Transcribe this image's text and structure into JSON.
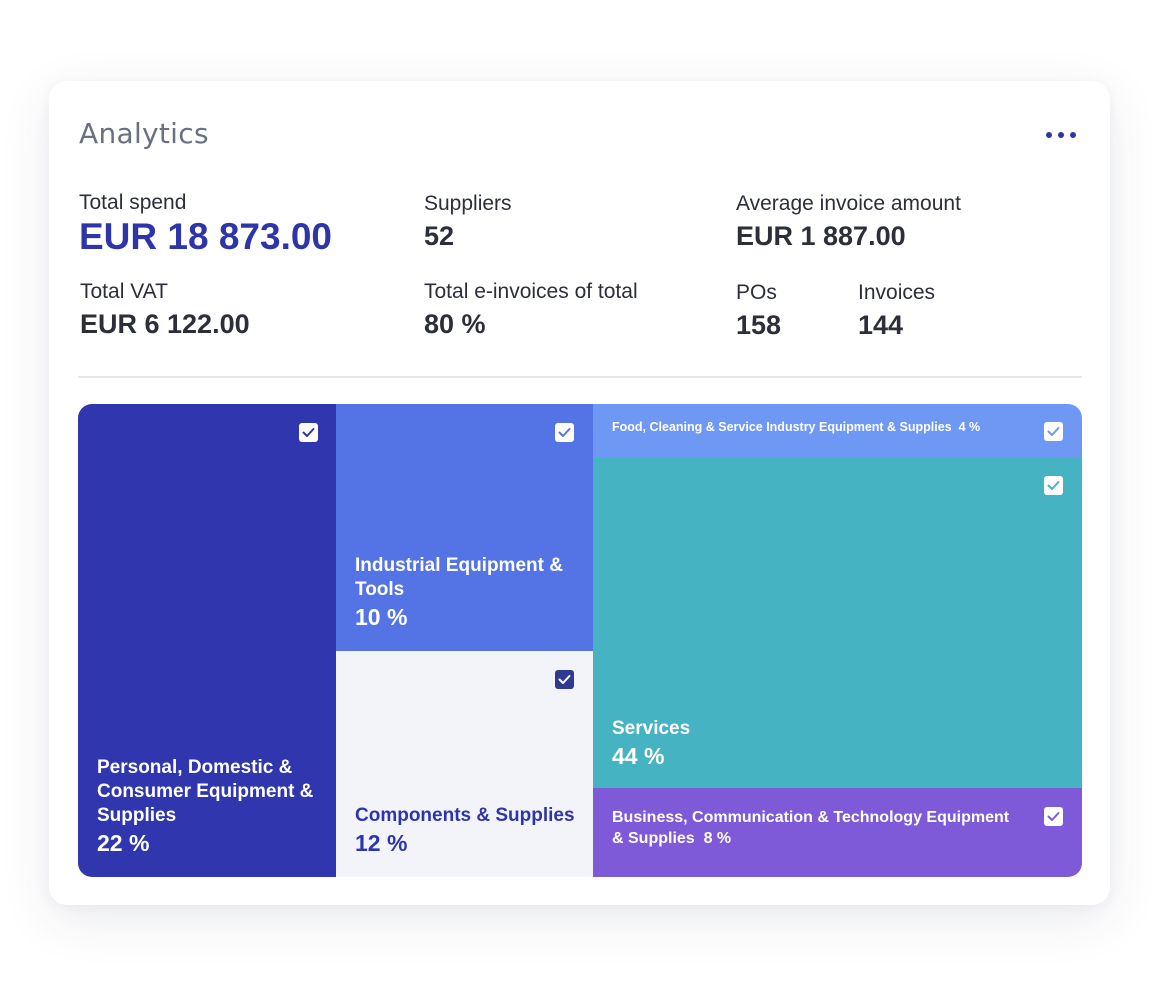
{
  "header": {
    "title": "Analytics",
    "more_icon": "more-horizontal-icon"
  },
  "stats": {
    "total_spend": {
      "label": "Total spend",
      "value": "EUR 18 873.00"
    },
    "suppliers": {
      "label": "Suppliers",
      "value": "52"
    },
    "average_invoice": {
      "label": "Average invoice amount",
      "value": "EUR 1 887.00"
    },
    "total_vat": {
      "label": "Total VAT",
      "value": "EUR 6 122.00"
    },
    "e_invoices": {
      "label": "Total e-invoices of total",
      "value": "80 %"
    },
    "pos": {
      "label": "POs",
      "value": "158"
    },
    "invoices": {
      "label": "Invoices",
      "value": "144"
    }
  },
  "treemap": {
    "colors": {
      "personal": "#3036ad",
      "industrial": "#5474e6",
      "components": "#f2f4f9",
      "food": "#6f98f5",
      "services": "#46b3c2",
      "business": "#7e5ad9"
    },
    "tiles": [
      {
        "key": "personal",
        "label": "Personal, Domestic & Consumer Equipment & Supplies",
        "percent": "22 %",
        "checked": true
      },
      {
        "key": "industrial",
        "label": "Industrial Equipment & Tools",
        "percent": "10 %",
        "checked": true
      },
      {
        "key": "components",
        "label": "Components & Supplies",
        "percent": "12 %",
        "checked": true
      },
      {
        "key": "food",
        "label": "Food, Cleaning & Service Industry Equipment & Supplies",
        "percent": "4 %",
        "checked": true
      },
      {
        "key": "services",
        "label": "Services",
        "percent": "44 %",
        "checked": true
      },
      {
        "key": "business",
        "label": "Business, Communication & Technology Equipment & Supplies",
        "percent": "8 %",
        "checked": true
      }
    ]
  }
}
